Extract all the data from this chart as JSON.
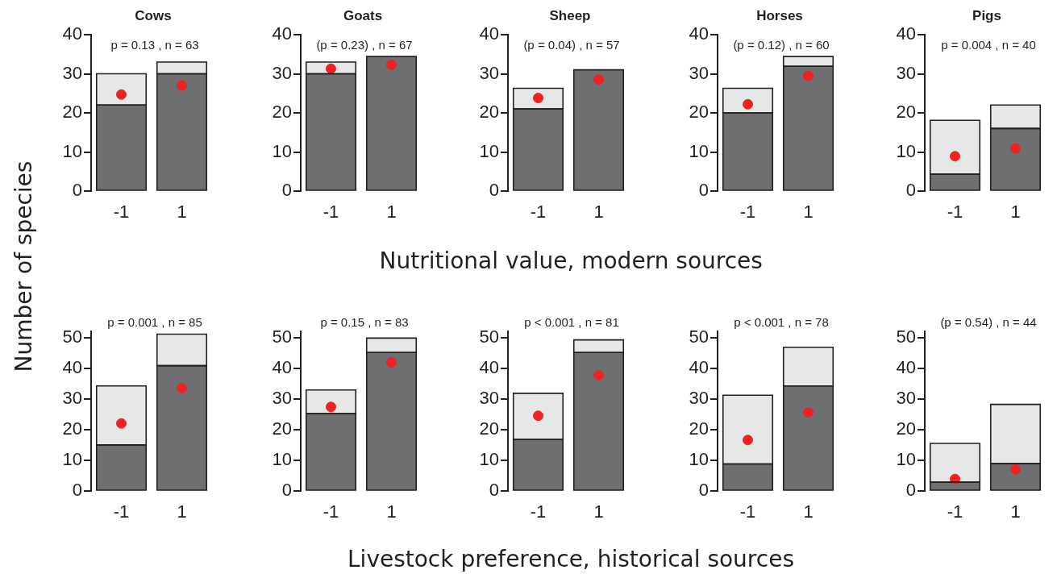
{
  "chart_data": [
    {
      "type": "bar",
      "title": "Cows",
      "ylabel": "Number of species",
      "annotations": [
        "p = 0.13 , n = 63"
      ],
      "categories": [
        "-1",
        "1"
      ],
      "stacked": true,
      "ylim": [
        0,
        40
      ],
      "yticks": [
        0,
        10,
        20,
        30,
        40
      ],
      "grid": false,
      "legend": false,
      "series": [
        {
          "color": "#6d6f70",
          "values": [
            22,
            30
          ]
        },
        {
          "color": "#e6e7e7",
          "values": [
            8,
            3
          ]
        },
        {
          "type": "scatter",
          "color": "#ee2222",
          "marker": "circle",
          "x": [
            "-1",
            "1"
          ],
          "values": [
            24.7,
            27
          ]
        }
      ]
    },
    {
      "type": "bar",
      "title": "Goats",
      "annotations": [
        "(p = 0.23) , n = 67"
      ],
      "categories": [
        "-1",
        "1"
      ],
      "stacked": true,
      "ylim": [
        0,
        40
      ],
      "yticks": [
        0,
        10,
        20,
        30,
        40
      ],
      "grid": false,
      "legend": false,
      "series": [
        {
          "color": "#6d6f70",
          "values": [
            30,
            34.4
          ]
        },
        {
          "color": "#e6e7e7",
          "values": [
            3,
            0
          ]
        },
        {
          "type": "scatter",
          "color": "#ee2222",
          "marker": "circle",
          "x": [
            "-1",
            "1"
          ],
          "values": [
            31.3,
            32.3
          ]
        }
      ]
    },
    {
      "type": "bar",
      "title": "Sheep",
      "xlabel": "Nutritional value, modern sources",
      "annotations": [
        "(p = 0.04) , n = 57"
      ],
      "categories": [
        "-1",
        "1"
      ],
      "stacked": true,
      "ylim": [
        0,
        40
      ],
      "yticks": [
        0,
        10,
        20,
        30,
        40
      ],
      "grid": false,
      "legend": false,
      "series": [
        {
          "color": "#6d6f70",
          "values": [
            21,
            31
          ]
        },
        {
          "color": "#e6e7e7",
          "values": [
            5.3,
            0
          ]
        },
        {
          "type": "scatter",
          "color": "#ee2222",
          "marker": "circle",
          "x": [
            "-1",
            "1"
          ],
          "values": [
            23.8,
            28.5
          ]
        }
      ]
    },
    {
      "type": "bar",
      "title": "Horses",
      "annotations": [
        "(p = 0.12) , n = 60"
      ],
      "categories": [
        "-1",
        "1"
      ],
      "stacked": true,
      "ylim": [
        0,
        40
      ],
      "yticks": [
        0,
        10,
        20,
        30,
        40
      ],
      "grid": false,
      "legend": false,
      "series": [
        {
          "color": "#6d6f70",
          "values": [
            20,
            31.9
          ]
        },
        {
          "color": "#e6e7e7",
          "values": [
            6.3,
            2.5
          ]
        },
        {
          "type": "scatter",
          "color": "#ee2222",
          "marker": "circle",
          "x": [
            "-1",
            "1"
          ],
          "values": [
            22.2,
            29.5
          ]
        }
      ]
    },
    {
      "type": "bar",
      "title": "Pigs",
      "annotations": [
        "p = 0.004 , n = 40"
      ],
      "categories": [
        "-1",
        "1"
      ],
      "stacked": true,
      "ylim": [
        0,
        40
      ],
      "yticks": [
        0,
        10,
        20,
        30,
        40
      ],
      "grid": false,
      "legend": false,
      "series": [
        {
          "color": "#6d6f70",
          "values": [
            4.3,
            16
          ]
        },
        {
          "color": "#e6e7e7",
          "values": [
            13.8,
            6
          ]
        },
        {
          "type": "scatter",
          "color": "#ee2222",
          "marker": "circle",
          "x": [
            "-1",
            "1"
          ],
          "values": [
            8.9,
            10.9
          ]
        }
      ]
    },
    {
      "type": "bar",
      "annotations": [
        "p = 0.001 , n = 85"
      ],
      "categories": [
        "-1",
        "1"
      ],
      "stacked": true,
      "ylim": [
        0,
        52
      ],
      "yticks": [
        0,
        10,
        20,
        30,
        40,
        50
      ],
      "grid": false,
      "legend": false,
      "series": [
        {
          "color": "#6d6f70",
          "values": [
            15,
            40.8
          ]
        },
        {
          "color": "#e6e7e7",
          "values": [
            19.2,
            10.3
          ]
        },
        {
          "type": "scatter",
          "color": "#ee2222",
          "marker": "circle",
          "x": [
            "-1",
            "1"
          ],
          "values": [
            22,
            33.5
          ]
        }
      ]
    },
    {
      "type": "bar",
      "annotations": [
        "p = 0.15 , n = 83"
      ],
      "categories": [
        "-1",
        "1"
      ],
      "stacked": true,
      "ylim": [
        0,
        52
      ],
      "yticks": [
        0,
        10,
        20,
        30,
        40,
        50
      ],
      "grid": false,
      "legend": false,
      "series": [
        {
          "color": "#6d6f70",
          "values": [
            25.2,
            45.1
          ]
        },
        {
          "color": "#e6e7e7",
          "values": [
            7.7,
            4.7
          ]
        },
        {
          "type": "scatter",
          "color": "#ee2222",
          "marker": "circle",
          "x": [
            "-1",
            "1"
          ],
          "values": [
            27.4,
            41.9
          ]
        }
      ]
    },
    {
      "type": "bar",
      "xlabel": "Livestock preference, historical sources",
      "annotations": [
        "p < 0.001 , n = 81"
      ],
      "categories": [
        "-1",
        "1"
      ],
      "stacked": true,
      "ylim": [
        0,
        52
      ],
      "yticks": [
        0,
        10,
        20,
        30,
        40,
        50
      ],
      "grid": false,
      "legend": false,
      "series": [
        {
          "color": "#6d6f70",
          "values": [
            16.8,
            45.1
          ]
        },
        {
          "color": "#e6e7e7",
          "values": [
            15,
            4.1
          ]
        },
        {
          "type": "scatter",
          "color": "#ee2222",
          "marker": "circle",
          "x": [
            "-1",
            "1"
          ],
          "values": [
            24.5,
            37.7
          ]
        }
      ]
    },
    {
      "type": "bar",
      "annotations": [
        "p < 0.001 , n = 78"
      ],
      "categories": [
        "-1",
        "1"
      ],
      "stacked": true,
      "ylim": [
        0,
        52
      ],
      "yticks": [
        0,
        10,
        20,
        30,
        40,
        50
      ],
      "grid": false,
      "legend": false,
      "series": [
        {
          "color": "#6d6f70",
          "values": [
            8.8,
            34.2
          ]
        },
        {
          "color": "#e6e7e7",
          "values": [
            22.4,
            12.6
          ]
        },
        {
          "type": "scatter",
          "color": "#ee2222",
          "marker": "circle",
          "x": [
            "-1",
            "1"
          ],
          "values": [
            16.6,
            25.6
          ]
        }
      ]
    },
    {
      "type": "bar",
      "annotations": [
        "(p = 0.54) , n = 44"
      ],
      "categories": [
        "-1",
        "1"
      ],
      "stacked": true,
      "ylim": [
        0,
        52
      ],
      "yticks": [
        0,
        10,
        20,
        30,
        40,
        50
      ],
      "grid": false,
      "legend": false,
      "series": [
        {
          "color": "#6d6f70",
          "values": [
            2.9,
            8.9
          ]
        },
        {
          "color": "#e6e7e7",
          "values": [
            12.6,
            19.3
          ]
        },
        {
          "type": "scatter",
          "color": "#ee2222",
          "marker": "circle",
          "x": [
            "-1",
            "1"
          ],
          "values": [
            3.9,
            7
          ]
        }
      ]
    }
  ]
}
